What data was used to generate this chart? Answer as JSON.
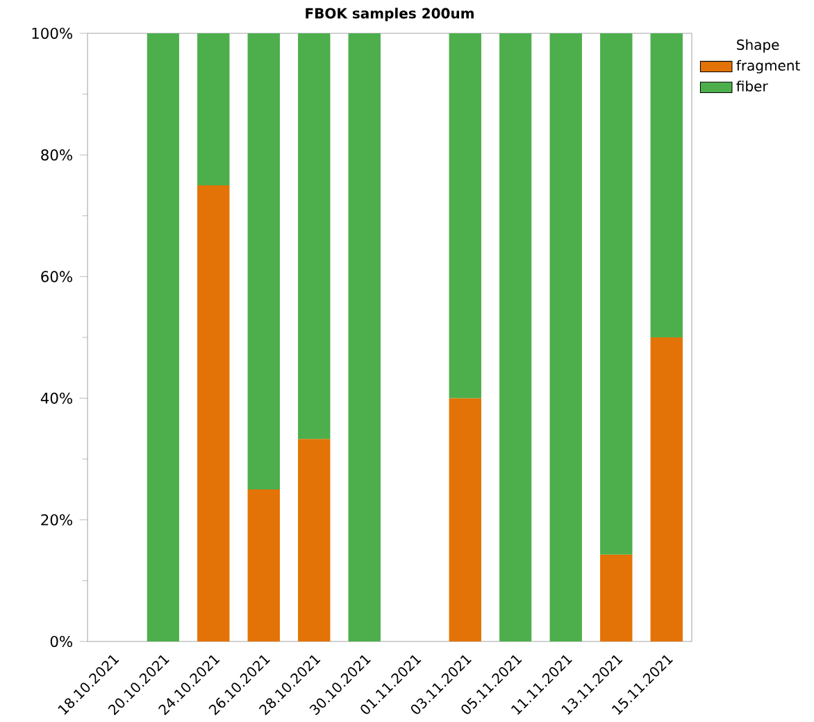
{
  "chart_data": {
    "type": "bar",
    "title": "FBOK samples 200um",
    "legend_title": "Shape",
    "categories": [
      "18.10.2021",
      "20.10.2021",
      "24.10.2021",
      "26.10.2021",
      "28.10.2021",
      "30.10.2021",
      "01.11.2021",
      "03.11.2021",
      "05.11.2021",
      "11.11.2021",
      "13.11.2021",
      "15.11.2021"
    ],
    "series": [
      {
        "name": "fragment",
        "color": "#e37306",
        "values": [
          null,
          null,
          75,
          25,
          33.3,
          null,
          null,
          40,
          null,
          null,
          14.3,
          50
        ]
      },
      {
        "name": "fiber",
        "color": "#4caf4c",
        "values": [
          null,
          100,
          25,
          75,
          66.7,
          100,
          null,
          60,
          100,
          100,
          85.7,
          50
        ]
      }
    ],
    "stacked": true,
    "ylim": [
      0,
      100
    ],
    "yticks": [
      {
        "value": 0,
        "label": "0%"
      },
      {
        "value": 20,
        "label": "20%"
      },
      {
        "value": 40,
        "label": "40%"
      },
      {
        "value": 60,
        "label": "60%"
      },
      {
        "value": 80,
        "label": "80%"
      },
      {
        "value": 100,
        "label": "100%"
      }
    ],
    "legend": "top right",
    "grid": false
  }
}
